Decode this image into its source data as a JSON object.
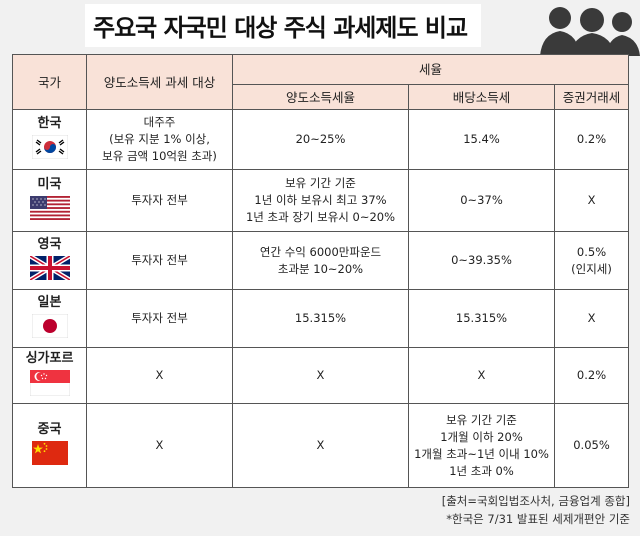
{
  "title": "주요국 자국민 대상 주식 과세제도 비교",
  "header": {
    "country": "국가",
    "target": "양도소득세 과세 대상",
    "rate_group": "세율",
    "capital_gains": "양도소득세율",
    "dividend": "배당소득세",
    "transaction": "증권거래세"
  },
  "rows": [
    {
      "country": "한국",
      "flag": "korea-flag",
      "target": [
        "대주주",
        "(보유 지분 1% 이상,",
        "보유 금액 10억원 초과)"
      ],
      "capital_gains": [
        "20~25%"
      ],
      "dividend": [
        "15.4%"
      ],
      "transaction": [
        "0.2%"
      ]
    },
    {
      "country": "미국",
      "flag": "usa-flag",
      "target": [
        "투자자 전부"
      ],
      "capital_gains": [
        "보유 기간 기준",
        "1년 이하 보유시 최고 37%",
        "1년 초과 장기 보유시 0~20%"
      ],
      "dividend": [
        "0~37%"
      ],
      "transaction": [
        "X"
      ]
    },
    {
      "country": "영국",
      "flag": "uk-flag",
      "target": [
        "투자자 전부"
      ],
      "capital_gains": [
        "연간 수익 6000만파운드",
        "초과분 10~20%"
      ],
      "dividend": [
        "0~39.35%"
      ],
      "transaction": [
        "0.5%",
        "(인지세)"
      ]
    },
    {
      "country": "일본",
      "flag": "japan-flag",
      "target": [
        "투자자 전부"
      ],
      "capital_gains": [
        "15.315%"
      ],
      "dividend": [
        "15.315%"
      ],
      "transaction": [
        "X"
      ]
    },
    {
      "country": "싱가포르",
      "flag": "singapore-flag",
      "target": [
        "X"
      ],
      "capital_gains": [
        "X"
      ],
      "dividend": [
        "X"
      ],
      "transaction": [
        "0.2%"
      ]
    },
    {
      "country": "중국",
      "flag": "china-flag",
      "target": [
        "X"
      ],
      "capital_gains": [
        "X"
      ],
      "dividend": [
        "보유 기간 기준",
        "1개월 이하 20%",
        "1개월 초과~1년 이내 10%",
        "1년 초과 0%"
      ],
      "transaction": [
        "0.05%"
      ]
    }
  ],
  "footer": {
    "source": "[출처=국회입법조사처, 금융업계 종합]",
    "note": "*한국은 7/31 발표된 세제개편안 기준"
  },
  "colors": {
    "header_bg": "#f9e2d8",
    "background": "#f1f1f1"
  }
}
